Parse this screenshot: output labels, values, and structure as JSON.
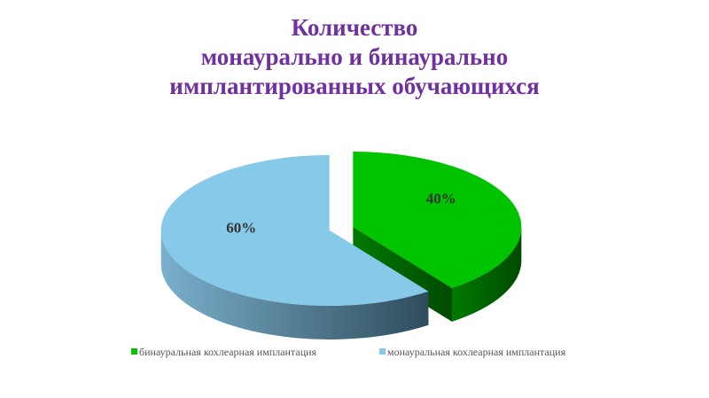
{
  "chart_data": {
    "type": "pie",
    "title": [
      "Количество",
      "монаурально и бинаурально",
      "имплантированных обучающихся"
    ],
    "categories": [
      "бинауральная кохлеарная имплантация",
      "монауральная кохлеарная имплантация"
    ],
    "values": [
      40,
      60
    ],
    "value_labels": [
      "40%",
      "60%"
    ],
    "colors": [
      "#00c400",
      "#87c9e8"
    ],
    "legend": "bottom"
  }
}
